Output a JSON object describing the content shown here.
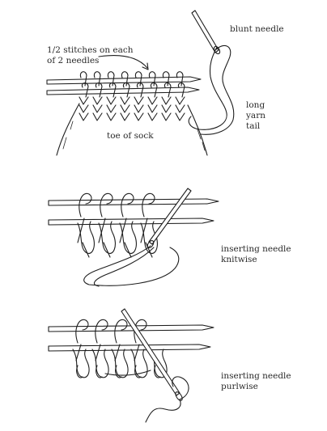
{
  "panels": [
    {
      "id": "setup",
      "labels": {
        "stitches": "1/2 stitches on each\nof 2 needles",
        "blunt_needle": "blunt needle",
        "yarn_tail": "long\nyarn\ntail",
        "toe": "toe of sock"
      }
    },
    {
      "id": "knitwise",
      "labels": {
        "caption": "inserting needle\nknitwise"
      }
    },
    {
      "id": "purlwise",
      "labels": {
        "caption": "inserting needle\npurlwise"
      }
    }
  ]
}
